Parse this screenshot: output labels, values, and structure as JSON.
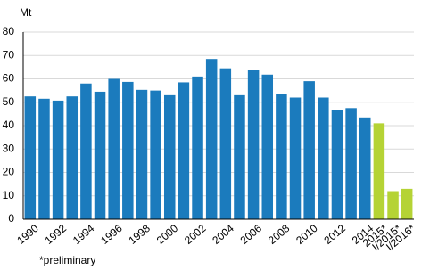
{
  "chart_data": {
    "type": "bar",
    "y_label": "Mt",
    "footnote": "*preliminary",
    "categories": [
      "1990",
      null,
      "1992",
      null,
      "1994",
      null,
      "1996",
      null,
      "1998",
      null,
      "2000",
      null,
      "2002",
      null,
      "2004",
      null,
      "2006",
      null,
      "2008",
      null,
      "2010",
      null,
      "2012",
      null,
      "2014",
      "2015*",
      "I/2015*",
      "I/2016*"
    ],
    "values": [
      52.5,
      51.5,
      50.7,
      52.5,
      58,
      54.5,
      60,
      58.7,
      55.3,
      55,
      53,
      58.5,
      61,
      68.5,
      64.5,
      53,
      64,
      61.8,
      53.5,
      52,
      59,
      52,
      46.5,
      47.5,
      43.5,
      41,
      12,
      13
    ],
    "colors": [
      "#1b7bbd",
      "#1b7bbd",
      "#1b7bbd",
      "#1b7bbd",
      "#1b7bbd",
      "#1b7bbd",
      "#1b7bbd",
      "#1b7bbd",
      "#1b7bbd",
      "#1b7bbd",
      "#1b7bbd",
      "#1b7bbd",
      "#1b7bbd",
      "#1b7bbd",
      "#1b7bbd",
      "#1b7bbd",
      "#1b7bbd",
      "#1b7bbd",
      "#1b7bbd",
      "#1b7bbd",
      "#1b7bbd",
      "#1b7bbd",
      "#1b7bbd",
      "#1b7bbd",
      "#1b7bbd",
      "#b5d335",
      "#b5d335",
      "#b5d335"
    ],
    "ylim": [
      0,
      80
    ],
    "yticks": [
      0,
      10,
      20,
      30,
      40,
      50,
      60,
      70,
      80
    ],
    "grid": true
  }
}
